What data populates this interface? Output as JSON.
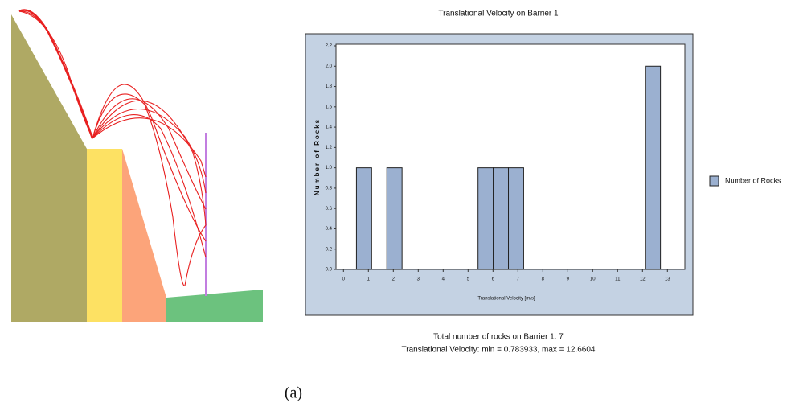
{
  "chart_data": {
    "type": "histogram",
    "title": "Translational Velocity on Barrier 1",
    "xlabel": "Translational Velocity [m/s]",
    "ylabel": "Number of Rocks",
    "bins": [
      0.52,
      1.13,
      1.74,
      2.35,
      2.96,
      3.57,
      4.18,
      4.79,
      5.4,
      6.01,
      6.62,
      7.23,
      7.84,
      8.45,
      9.06,
      9.67,
      10.28,
      10.89,
      11.5,
      12.11,
      12.72
    ],
    "series": [
      {
        "name": "Number of Rocks",
        "color": "#9bb0d0",
        "values": [
          1,
          0,
          1,
          0,
          0,
          0,
          0,
          0,
          1,
          1,
          1,
          0,
          0,
          0,
          0,
          0,
          0,
          0,
          0,
          2
        ]
      }
    ],
    "xlim": [
      -0.3,
      13.7
    ],
    "xticks": [
      0,
      1,
      2,
      3,
      4,
      5,
      6,
      7,
      8,
      9,
      10,
      11,
      12,
      13
    ],
    "ylim": [
      0,
      2.2
    ],
    "yticks": [
      {
        "value": 0,
        "label": "0.0"
      },
      0.2,
      0.4,
      0.6,
      0.8,
      {
        "value": 1,
        "label": "1.0"
      },
      1.2,
      1.4,
      1.6,
      1.8,
      {
        "value": 2,
        "label": "2.0"
      },
      2.2
    ],
    "legend": "right",
    "notes": [
      "Total number of rocks on Barrier 1:  7",
      "Translational Velocity:  min = 0.783933,  max = 12.6604"
    ],
    "caption": "(a)"
  }
}
